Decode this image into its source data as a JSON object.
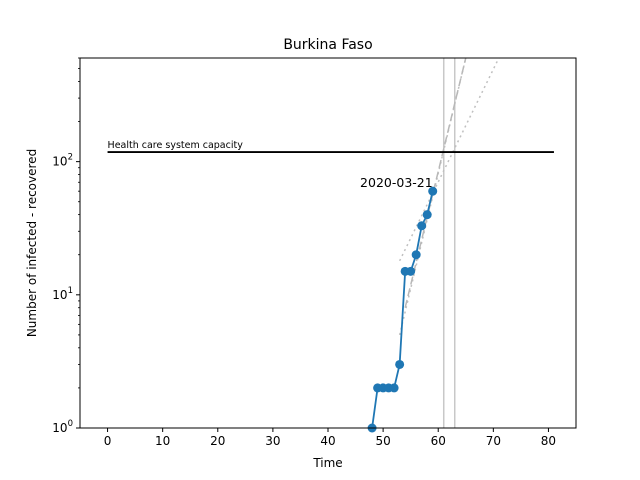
{
  "chart_data": {
    "type": "line",
    "title": "Burkina Faso",
    "xlabel": "Time",
    "ylabel": "Number of infected - recovered",
    "xlim": [
      -5,
      85
    ],
    "ylim": [
      1,
      600
    ],
    "yscale": "log",
    "grid": false,
    "xticks": [
      0,
      10,
      20,
      30,
      40,
      50,
      60,
      70,
      80
    ],
    "yticks": [
      {
        "value": 1,
        "label": "10^0"
      },
      {
        "value": 10,
        "label": "10^1"
      },
      {
        "value": 100,
        "label": "10^2"
      }
    ],
    "series": [
      {
        "color": "#1f77b4",
        "x": [
          48,
          49,
          50,
          51,
          52,
          53,
          54,
          55,
          56,
          57,
          58,
          59
        ],
        "y": [
          1,
          2,
          2,
          2,
          2,
          3,
          15,
          15,
          20,
          33,
          40,
          60
        ]
      }
    ],
    "capacity_line": {
      "label": "Health care system capacity",
      "y": 118,
      "x_start": 0,
      "x_end": 81,
      "color": "#000000"
    },
    "annotation": {
      "text": "2020-03-21",
      "x": 59,
      "y": 60
    },
    "vertical_lines": [
      {
        "x": 61,
        "color": "#c8c8c8"
      },
      {
        "x": 63,
        "color": "#c8c8c8"
      }
    ],
    "fit_lines": [
      {
        "style": "dotted",
        "color": "#c0c0c0",
        "x": [
          53,
          71
        ],
        "y": [
          18,
          600
        ]
      },
      {
        "style": "dotted",
        "color": "#c0c0c0",
        "x": [
          53,
          65
        ],
        "y": [
          5,
          600
        ]
      },
      {
        "style": "dashed",
        "color": "#b8b8b8",
        "x": [
          54,
          65
        ],
        "y": [
          8,
          600
        ]
      }
    ]
  }
}
